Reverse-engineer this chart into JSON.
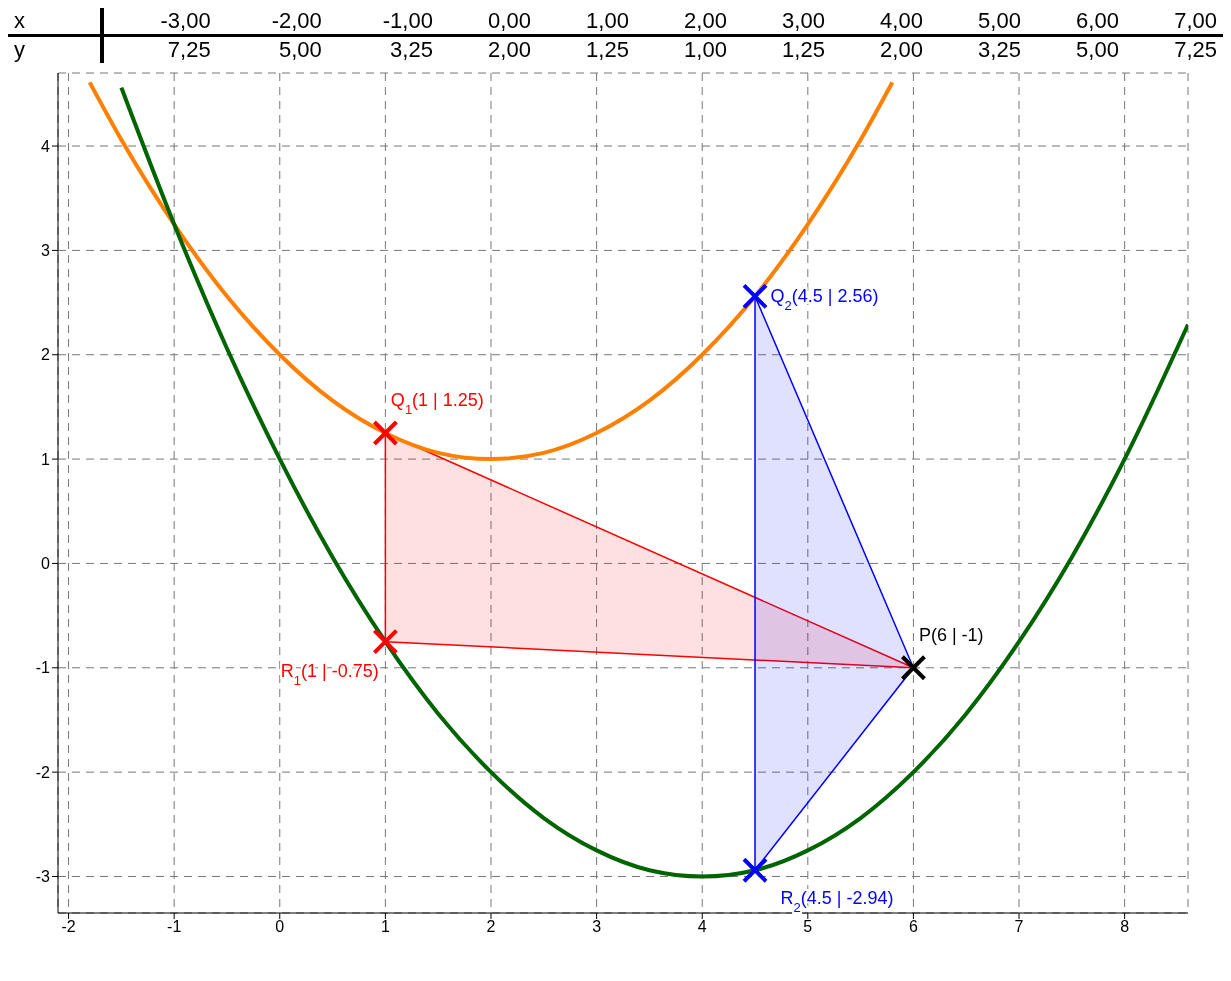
{
  "chart_data": [
    {
      "type": "other",
      "annotations": [
        "x",
        "-3,00",
        "-2,00",
        "-1,00",
        "0,00",
        "1,00",
        "2,00",
        "3,00",
        "4,00",
        "5,00",
        "6,00",
        "7,00",
        "y",
        "7,25",
        "5,00",
        "3,25",
        "2,00",
        "1,25",
        "1,00",
        "1,25",
        "2,00",
        "3,25",
        "5,00",
        "7,25"
      ]
    },
    {
      "type": "line",
      "xlim": [
        -2.1,
        8.6
      ],
      "ylim": [
        -3.35,
        4.7
      ],
      "xticks": [
        -2,
        -1,
        0,
        1,
        2,
        3,
        4,
        5,
        6,
        7,
        8
      ],
      "yticks": [
        -3,
        -2,
        -1,
        0,
        1,
        2,
        3,
        4
      ],
      "grid": true,
      "series": [
        {
          "type": "area",
          "color": "#ff0000",
          "x": [
            1,
            1,
            6
          ],
          "values": [
            1.25,
            -0.75,
            -1
          ]
        },
        {
          "type": "area",
          "color": "#0000ff",
          "x": [
            4.5,
            4.5,
            6
          ],
          "values": [
            2.56,
            -2.94,
            -1
          ]
        },
        {
          "marker": "none",
          "color": "#ff8000",
          "x": [
            -1.8,
            -1.5,
            -1,
            -0.5,
            0,
            0.5,
            1,
            1.5,
            2,
            2.5,
            3,
            3.5,
            4,
            4.5,
            5,
            5.5,
            5.8
          ],
          "values": [
            4.61,
            4.06,
            3.25,
            2.56,
            2,
            1.56,
            1.25,
            1.06,
            1,
            1.06,
            1.25,
            1.56,
            2,
            2.56,
            3.25,
            4.06,
            4.61
          ]
        },
        {
          "marker": "none",
          "color": "#006400",
          "x": [
            -1.5,
            -1,
            -0.5,
            0,
            0.5,
            1,
            1.5,
            2,
            2.5,
            3,
            3.5,
            4,
            4.5,
            5,
            5.5,
            6,
            6.5,
            7,
            7.5,
            8,
            8.6
          ],
          "values": [
            4.56,
            3.25,
            2.06,
            1,
            0.06,
            -0.75,
            -1.44,
            -2,
            -2.44,
            -2.75,
            -2.94,
            -3,
            -2.94,
            -2.75,
            -2.44,
            -2,
            -1.44,
            -0.75,
            0.06,
            1,
            2.29
          ]
        },
        {
          "type": "scatter",
          "marker": "cross",
          "name": "Q$_{1}$(1 | 1.25)",
          "color": "#ff0000",
          "x": [
            1
          ],
          "values": [
            1.25
          ]
        },
        {
          "type": "scatter",
          "marker": "cross",
          "name": "R$_{1}$(1 | -0.75)",
          "color": "#ff0000",
          "x": [
            1
          ],
          "values": [
            -0.75
          ]
        },
        {
          "type": "scatter",
          "marker": "cross",
          "name": "Q$_{2}$(4.5 | 2.56)",
          "color": "#0000ff",
          "x": [
            4.5
          ],
          "values": [
            2.56
          ]
        },
        {
          "type": "scatter",
          "marker": "cross",
          "name": "R$_{2}$(4.5 | -2.94)",
          "color": "#0000ff",
          "x": [
            4.5
          ],
          "values": [
            -2.94
          ]
        },
        {
          "type": "scatter",
          "marker": "cross",
          "name": "P(6 | -1)",
          "color": "#000000",
          "x": [
            6
          ],
          "values": [
            -1
          ]
        }
      ]
    }
  ]
}
